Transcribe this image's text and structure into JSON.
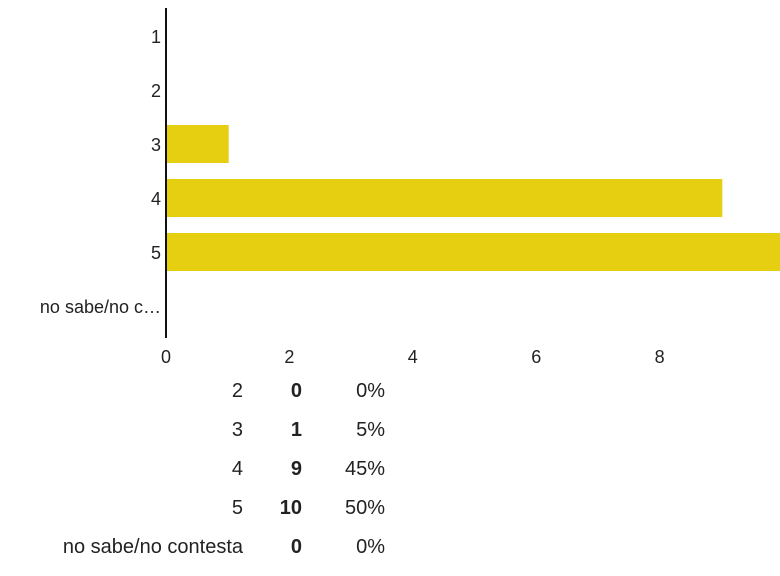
{
  "chart_data": {
    "type": "bar",
    "orientation": "horizontal",
    "categories": [
      "1",
      "2",
      "3",
      "4",
      "5",
      "no sabe/no c…"
    ],
    "values": [
      0,
      0,
      1,
      9,
      10,
      0
    ],
    "xlim": [
      0,
      10
    ],
    "xticks": [
      "0",
      "2",
      "4",
      "6",
      "8"
    ],
    "bar_color": "#E5CF10",
    "grid": false
  },
  "summary": {
    "rows": [
      {
        "label": "2",
        "count": "0",
        "percent": "0%"
      },
      {
        "label": "3",
        "count": "1",
        "percent": "5%"
      },
      {
        "label": "4",
        "count": "9",
        "percent": "45%"
      },
      {
        "label": "5",
        "count": "10",
        "percent": "50%"
      },
      {
        "label": "no sabe/no contesta",
        "count": "0",
        "percent": "0%"
      }
    ]
  }
}
